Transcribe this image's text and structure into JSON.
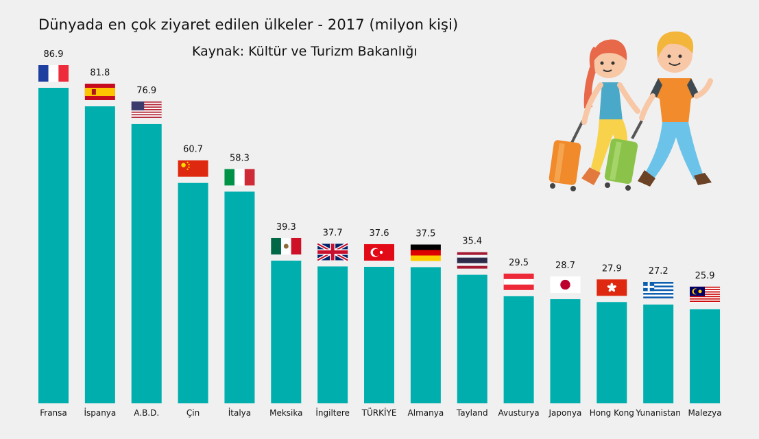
{
  "title": "Dünyada en çok ziyaret edilen ülkeler - 2017 (milyon kişi)",
  "source": "Kaynak: Kültür ve Turizm Bakanlığı",
  "colors": {
    "bar": "#00aeae",
    "background": "#f0f0f0"
  },
  "chart_data": {
    "type": "bar",
    "title": "Dünyada en çok ziyaret edilen ülkeler - 2017 (milyon kişi)",
    "xlabel": "",
    "ylabel": "",
    "ylim": [
      0,
      86.9
    ],
    "grid": false,
    "legend": "none",
    "categories": [
      "Fransa",
      "İspanya",
      "A.B.D.",
      "Çin",
      "İtalya",
      "Meksika",
      "İngiltere",
      "TÜRKİYE",
      "Almanya",
      "Tayland",
      "Avusturya",
      "Japonya",
      "Hong Kong",
      "Yunanistan",
      "Malezya"
    ],
    "values": [
      86.9,
      81.8,
      76.9,
      60.7,
      58.3,
      39.3,
      37.7,
      37.6,
      37.5,
      35.4,
      29.5,
      28.7,
      27.9,
      27.2,
      25.9
    ],
    "value_labels": [
      "86.9",
      "81.8",
      "76.9",
      "60.7",
      "58.3",
      "39.3",
      "37.7",
      "37.6",
      "37.5",
      "35.4",
      "29.5",
      "28.7",
      "27.9",
      "27.2",
      "25.9"
    ],
    "flag_icons": [
      "france-flag-icon",
      "spain-flag-icon",
      "usa-flag-icon",
      "china-flag-icon",
      "italy-flag-icon",
      "mexico-flag-icon",
      "uk-flag-icon",
      "turkey-flag-icon",
      "germany-flag-icon",
      "thailand-flag-icon",
      "austria-flag-icon",
      "japan-flag-icon",
      "hong-kong-flag-icon",
      "greece-flag-icon",
      "malaysia-flag-icon"
    ]
  },
  "illustration": {
    "icon": "tourist-couple-with-luggage-illustration"
  }
}
